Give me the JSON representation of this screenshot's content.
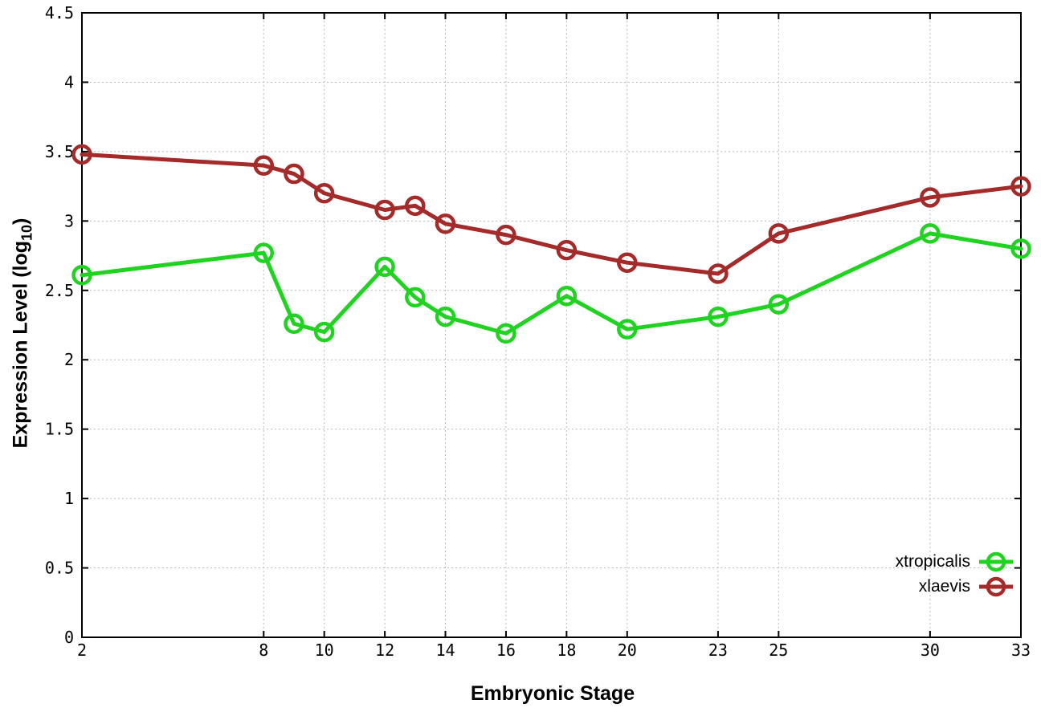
{
  "chart_data": {
    "type": "line",
    "x": [
      2,
      8,
      9,
      10,
      12,
      13,
      14,
      16,
      18,
      20,
      23,
      25,
      30,
      33
    ],
    "series": [
      {
        "name": "xtropicalis",
        "color": "#21d321",
        "values": [
          2.61,
          2.77,
          2.26,
          2.2,
          2.67,
          2.45,
          2.31,
          2.19,
          2.46,
          2.22,
          2.31,
          2.4,
          2.91,
          2.8
        ]
      },
      {
        "name": "xlaevis",
        "color": "#a52a2a",
        "values": [
          3.48,
          3.4,
          3.34,
          3.2,
          3.08,
          3.11,
          2.98,
          2.9,
          2.79,
          2.7,
          2.62,
          2.91,
          3.17,
          3.25
        ]
      }
    ],
    "xlabel": "Embryonic Stage",
    "ylabel_main": "Expression Level (log",
    "ylabel_sub": "10",
    "ylabel_close": ")",
    "xlim": [
      2,
      33
    ],
    "ylim": [
      0,
      4.5
    ],
    "xticks": [
      2,
      8,
      10,
      12,
      14,
      16,
      18,
      20,
      23,
      25,
      30,
      33
    ],
    "ytick_labels": [
      "0",
      "0.5",
      "1",
      "1.5",
      "2",
      "2.5",
      "3",
      "3.5",
      "4",
      "4.5"
    ],
    "yticks": [
      0,
      0.5,
      1,
      1.5,
      2,
      2.5,
      3,
      3.5,
      4,
      4.5
    ],
    "grid": true,
    "legend_position": "bottom-right",
    "colors": {
      "grid": "#bbbbbb",
      "axis": "#000000",
      "background": "#ffffff"
    }
  }
}
